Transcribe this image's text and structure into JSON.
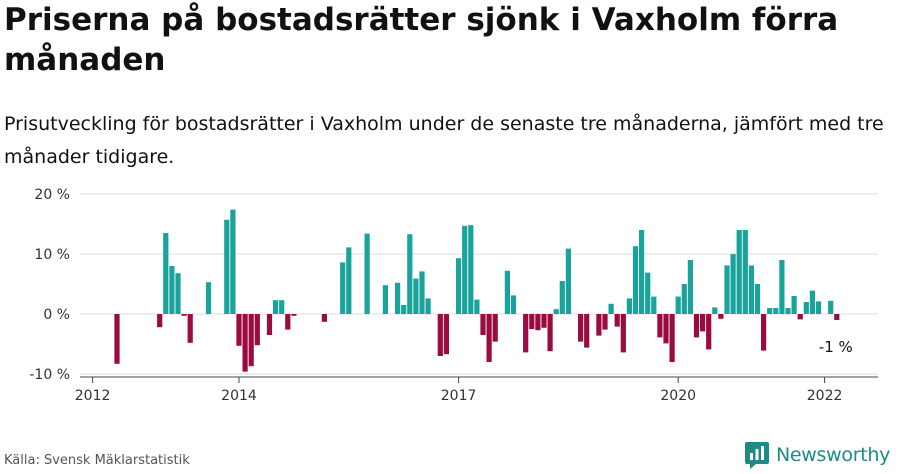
{
  "title": "Priserna på bostadsrätter sjönk i Vaxholm förra månaden",
  "subtitle": "Prisutveckling för bostadsrätter i Vaxholm under de senaste tre månaderna, jämfört med tre månader tidigare.",
  "source": "Källa: Svensk Mäklarstatistik",
  "brand": {
    "name": "Newsworthy",
    "icon": "newsworthy-logo-icon",
    "color": "#1f8a86"
  },
  "colors": {
    "positive": "#1aa39b",
    "negative": "#9a0b3f",
    "grid": "#dddddd",
    "axis": "#444444"
  },
  "chart_data": {
    "type": "bar",
    "ylim": [
      -10,
      20
    ],
    "y_ticks": [
      20,
      10,
      0,
      -10
    ],
    "y_tick_labels": [
      "20 %",
      "10 %",
      "0 %",
      "-10 %"
    ],
    "x_ticks": [
      2012,
      2014,
      2017,
      2020,
      2022
    ],
    "x_tick_labels": [
      "2012",
      "2014",
      "2017",
      "2020",
      "2022"
    ],
    "grid": true,
    "legend": "none",
    "last_label": "-1 %",
    "x": [
      "2012-01",
      "2012-02",
      "2012-03",
      "2012-04",
      "2012-05",
      "2012-06",
      "2012-07",
      "2012-08",
      "2012-09",
      "2012-10",
      "2012-11",
      "2012-12",
      "2013-01",
      "2013-02",
      "2013-03",
      "2013-04",
      "2013-05",
      "2013-06",
      "2013-07",
      "2013-08",
      "2013-09",
      "2013-10",
      "2013-11",
      "2013-12",
      "2014-01",
      "2014-02",
      "2014-03",
      "2014-04",
      "2014-05",
      "2014-06",
      "2014-07",
      "2014-08",
      "2014-09",
      "2014-10",
      "2014-11",
      "2014-12",
      "2015-01",
      "2015-02",
      "2015-03",
      "2015-04",
      "2015-05",
      "2015-06",
      "2015-07",
      "2015-08",
      "2015-09",
      "2015-10",
      "2015-11",
      "2015-12",
      "2016-01",
      "2016-02",
      "2016-03",
      "2016-04",
      "2016-05",
      "2016-06",
      "2016-07",
      "2016-08",
      "2016-09",
      "2016-10",
      "2016-11",
      "2016-12",
      "2017-01",
      "2017-02",
      "2017-03",
      "2017-04",
      "2017-05",
      "2017-06",
      "2017-07",
      "2017-08",
      "2017-09",
      "2017-10",
      "2017-11",
      "2017-12",
      "2018-01",
      "2018-02",
      "2018-03",
      "2018-04",
      "2018-05",
      "2018-06",
      "2018-07",
      "2018-08",
      "2018-09",
      "2018-10",
      "2018-11",
      "2018-12",
      "2019-01",
      "2019-02",
      "2019-03",
      "2019-04",
      "2019-05",
      "2019-06",
      "2019-07",
      "2019-08",
      "2019-09",
      "2019-10",
      "2019-11",
      "2019-12",
      "2020-01",
      "2020-02",
      "2020-03",
      "2020-04",
      "2020-05",
      "2020-06",
      "2020-07",
      "2020-08",
      "2020-09",
      "2020-10",
      "2020-11",
      "2020-12",
      "2021-01",
      "2021-02",
      "2021-03",
      "2021-04",
      "2021-05",
      "2021-06",
      "2021-07",
      "2021-08",
      "2021-09",
      "2021-10",
      "2021-11",
      "2021-12",
      "2022-01",
      "2022-02",
      "2022-03"
    ],
    "values": [
      null,
      null,
      null,
      null,
      -8.3,
      null,
      null,
      null,
      null,
      null,
      null,
      -2.2,
      13.5,
      8.0,
      6.8,
      -0.3,
      -4.8,
      null,
      null,
      5.3,
      null,
      null,
      15.7,
      17.4,
      -5.3,
      -9.6,
      -8.7,
      -5.2,
      null,
      -3.5,
      2.3,
      2.3,
      -2.6,
      -0.3,
      null,
      null,
      null,
      null,
      -1.3,
      null,
      null,
      8.6,
      11.1,
      null,
      null,
      13.4,
      null,
      null,
      4.8,
      null,
      5.2,
      1.5,
      13.3,
      5.9,
      7.1,
      2.6,
      null,
      -7.0,
      -6.7,
      null,
      9.3,
      14.7,
      14.8,
      2.4,
      -3.5,
      -8.0,
      -4.6,
      null,
      7.2,
      3.1,
      null,
      -6.4,
      -2.5,
      -2.7,
      -2.3,
      -6.2,
      0.8,
      5.5,
      10.9,
      null,
      -4.6,
      -5.6,
      null,
      -3.6,
      -2.6,
      1.7,
      -2.1,
      -6.4,
      2.6,
      11.3,
      14.0,
      6.9,
      2.9,
      -3.9,
      -4.9,
      -8.0,
      2.9,
      5.0,
      9.0,
      -3.9,
      -2.9,
      -5.9,
      1.1,
      -0.8,
      8.1,
      10.0,
      14.0,
      14.0,
      8.1,
      5.0,
      -6.1,
      1.0,
      1.0,
      9.0,
      1.0,
      3.0,
      -0.9,
      2.0,
      3.9,
      2.1,
      null,
      2.2,
      -1.0
    ]
  }
}
